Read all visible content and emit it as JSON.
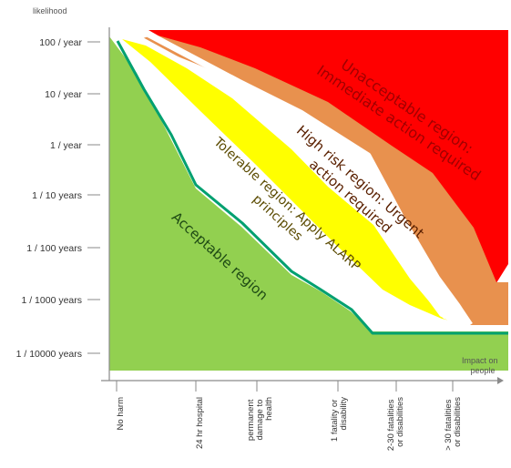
{
  "y_axis": {
    "title": "likelihood",
    "ticks": [
      "100 / year",
      "10 / year",
      "1 / year",
      "1 / 10 years",
      "1 / 100 years",
      "1 / 1000 years",
      "1 / 10000 years"
    ]
  },
  "x_axis": {
    "title_lines": [
      "Impact on",
      "people"
    ],
    "categories": [
      {
        "lines": [
          "No harm"
        ]
      },
      {
        "lines": [
          "24 hr hospital"
        ]
      },
      {
        "lines": [
          "permanent",
          "damage to",
          "health"
        ]
      },
      {
        "lines": [
          "1 fatality or",
          "disability"
        ]
      },
      {
        "lines": [
          "2-30 fatalities",
          "or disabilities"
        ]
      },
      {
        "lines": [
          "> 30 fatalities",
          "or disabilities"
        ]
      }
    ]
  },
  "regions": [
    {
      "key": "unacceptable",
      "label_lines": [
        "Unacceptable region:",
        "Immediate action required"
      ],
      "color": "#ff0000",
      "text_color": "#a00000"
    },
    {
      "key": "high_risk",
      "label_lines": [
        "High risk region: Urgent",
        "action required"
      ],
      "color": "#e8914e",
      "text_color": "#5a2000"
    },
    {
      "key": "tolerable",
      "label_lines": [
        "Tolerable region: Apply ALARP",
        "principles"
      ],
      "color": "#ffff00",
      "text_color": "#5a4a00"
    },
    {
      "key": "acceptable",
      "label_lines": [
        "Acceptable region"
      ],
      "color": "#92d050",
      "text_color": "#1e4a14"
    }
  ],
  "boundary_color": "#00a070"
}
